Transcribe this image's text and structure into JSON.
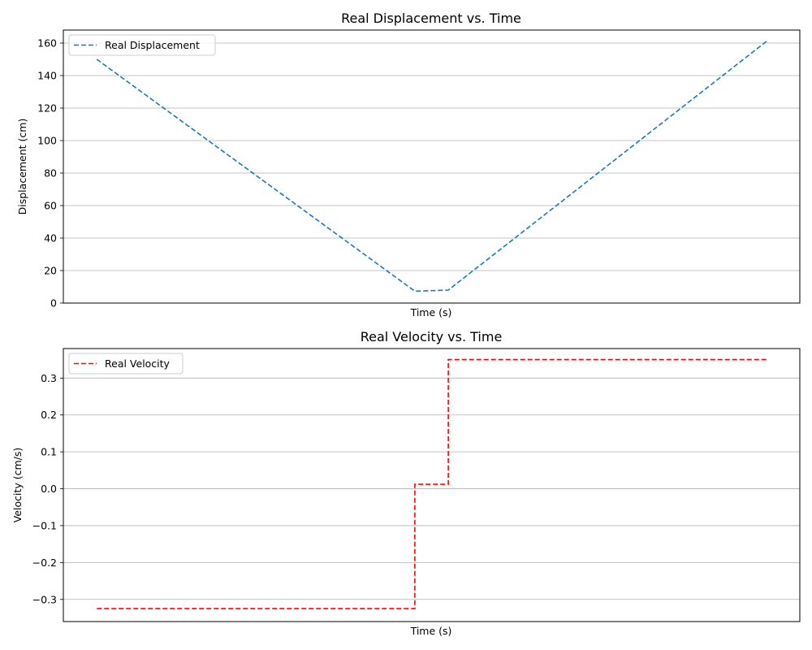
{
  "chart_data": [
    {
      "type": "line",
      "title": "Real Displacement vs. Time",
      "xlabel": "Time (s)",
      "ylabel": "Displacement (cm)",
      "ylim": [
        0,
        168
      ],
      "yticks": [
        0,
        20,
        40,
        60,
        80,
        100,
        120,
        140,
        160
      ],
      "xlim": [
        -1,
        21
      ],
      "xticks_visible": false,
      "grid": "y",
      "legend": "top-left",
      "step": false,
      "series": [
        {
          "name": "Real Displacement",
          "color": "#1f77b4",
          "linestyle": "dashed",
          "x": [
            0,
            9.5,
            10.5,
            20
          ],
          "y": [
            150,
            7.3,
            8.0,
            161
          ]
        }
      ]
    },
    {
      "type": "line",
      "title": "Real Velocity vs. Time",
      "xlabel": "Time (s)",
      "ylabel": "Velocity (cm/s)",
      "ylim": [
        -0.36,
        0.38
      ],
      "yticks": [
        -0.3,
        -0.2,
        -0.1,
        0.0,
        0.1,
        0.2,
        0.3
      ],
      "ytick_labels": [
        "−0.3",
        "−0.2",
        "−0.1",
        "0.0",
        "0.1",
        "0.2",
        "0.3"
      ],
      "xlim": [
        -1,
        21
      ],
      "xticks_visible": false,
      "grid": "y",
      "legend": "top-left",
      "step": true,
      "series": [
        {
          "name": "Real Velocity",
          "color": "#ff0000",
          "linestyle": "dashed",
          "x": [
            0,
            9.5,
            10.5,
            20
          ],
          "y": [
            -0.325,
            0.012,
            0.35,
            0.35
          ]
        }
      ]
    }
  ]
}
